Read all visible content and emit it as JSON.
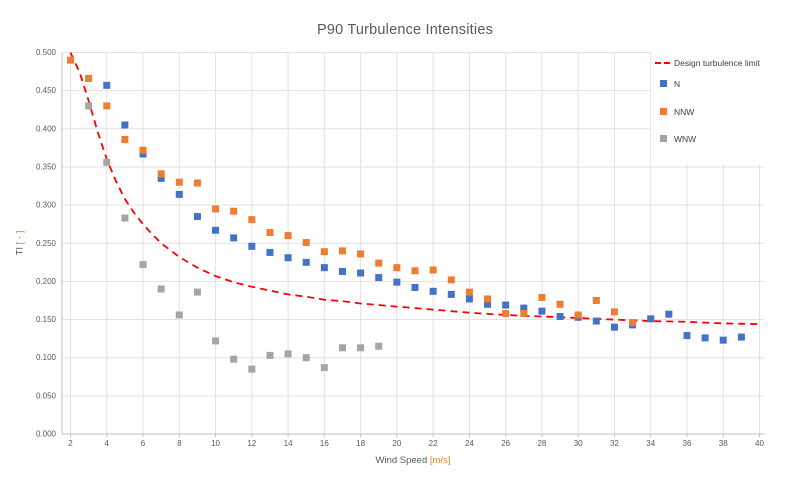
{
  "title": "P90 Turbulence Intensities",
  "x_axis": {
    "label": "Wind Speed",
    "unit": "[m/s]",
    "ticks": [
      2,
      4,
      6,
      8,
      10,
      12,
      14,
      16,
      18,
      20,
      22,
      24,
      26,
      28,
      30,
      32,
      34,
      36,
      38,
      40
    ]
  },
  "y_axis": {
    "label": "TI",
    "unit": "[ - ]",
    "ticks": [
      "0.000",
      "0.050",
      "0.100",
      "0.150",
      "0.200",
      "0.250",
      "0.300",
      "0.350",
      "0.400",
      "0.450",
      "0.500"
    ]
  },
  "legend": {
    "limit_label": "Design turbulence limit",
    "series_labels": {
      "n": "N",
      "nnw": "NNW",
      "wnw": "WNW"
    }
  },
  "colors": {
    "n": "#4472C4",
    "nnw": "#ED7D31",
    "wnw": "#A5A5A5",
    "limit": "#FF0000",
    "grid": "#E2E2E2",
    "axis": "#BFBFBF",
    "text": "#595959",
    "accent": "#ED7D31"
  },
  "chart_data": {
    "type": "scatter",
    "title": "P90 Turbulence Intensities",
    "xlabel": "Wind Speed [m/s]",
    "ylabel": "TI [ - ]",
    "xlim": [
      2,
      40
    ],
    "ylim": [
      0,
      0.5
    ],
    "x_tick_step": 2,
    "y_tick_step": 0.05,
    "grid": true,
    "legend_position": "top-right",
    "series": [
      {
        "name": "N",
        "marker": "square",
        "color": "#4472C4",
        "points": [
          [
            4,
            0.457
          ],
          [
            5,
            0.405
          ],
          [
            6,
            0.367
          ],
          [
            7,
            0.335
          ],
          [
            8,
            0.314
          ],
          [
            9,
            0.285
          ],
          [
            10,
            0.267
          ],
          [
            11,
            0.257
          ],
          [
            12,
            0.246
          ],
          [
            13,
            0.238
          ],
          [
            14,
            0.231
          ],
          [
            15,
            0.225
          ],
          [
            16,
            0.218
          ],
          [
            17,
            0.213
          ],
          [
            18,
            0.211
          ],
          [
            19,
            0.205
          ],
          [
            20,
            0.199
          ],
          [
            21,
            0.192
          ],
          [
            22,
            0.187
          ],
          [
            23,
            0.183
          ],
          [
            24,
            0.177
          ],
          [
            25,
            0.17
          ],
          [
            26,
            0.169
          ],
          [
            27,
            0.165
          ],
          [
            28,
            0.161
          ],
          [
            29,
            0.154
          ],
          [
            30,
            0.153
          ],
          [
            31,
            0.148
          ],
          [
            32,
            0.14
          ],
          [
            33,
            0.143
          ],
          [
            34,
            0.151
          ],
          [
            35,
            0.157
          ],
          [
            36,
            0.129
          ],
          [
            37,
            0.126
          ],
          [
            38,
            0.123
          ],
          [
            39,
            0.127
          ]
        ]
      },
      {
        "name": "NNW",
        "marker": "square",
        "color": "#ED7D31",
        "points": [
          [
            2,
            0.49
          ],
          [
            3,
            0.466
          ],
          [
            4,
            0.43
          ],
          [
            5,
            0.386
          ],
          [
            6,
            0.372
          ],
          [
            7,
            0.341
          ],
          [
            8,
            0.33
          ],
          [
            9,
            0.329
          ],
          [
            10,
            0.295
          ],
          [
            11,
            0.292
          ],
          [
            12,
            0.281
          ],
          [
            13,
            0.264
          ],
          [
            14,
            0.26
          ],
          [
            15,
            0.251
          ],
          [
            16,
            0.239
          ],
          [
            17,
            0.24
          ],
          [
            18,
            0.236
          ],
          [
            19,
            0.224
          ],
          [
            20,
            0.218
          ],
          [
            21,
            0.214
          ],
          [
            22,
            0.215
          ],
          [
            23,
            0.202
          ],
          [
            24,
            0.186
          ],
          [
            25,
            0.177
          ],
          [
            26,
            0.158
          ],
          [
            27,
            0.158
          ],
          [
            28,
            0.179
          ],
          [
            29,
            0.17
          ],
          [
            30,
            0.156
          ],
          [
            31,
            0.175
          ],
          [
            32,
            0.16
          ],
          [
            33,
            0.146
          ]
        ]
      },
      {
        "name": "WNW",
        "marker": "square",
        "color": "#A5A5A5",
        "points": [
          [
            3,
            0.43
          ],
          [
            4,
            0.356
          ],
          [
            5,
            0.283
          ],
          [
            6,
            0.222
          ],
          [
            7,
            0.19
          ],
          [
            8,
            0.156
          ],
          [
            9,
            0.186
          ],
          [
            10,
            0.122
          ],
          [
            11,
            0.098
          ],
          [
            12,
            0.085
          ],
          [
            13,
            0.103
          ],
          [
            14,
            0.105
          ],
          [
            15,
            0.1
          ],
          [
            16,
            0.087
          ],
          [
            17,
            0.113
          ],
          [
            18,
            0.113
          ],
          [
            19,
            0.115
          ]
        ]
      }
    ],
    "limit_line": {
      "name": "Design turbulence limit",
      "style": "dashed",
      "color": "#FF0000",
      "points": [
        [
          2,
          0.5
        ],
        [
          2.5,
          0.474
        ],
        [
          3,
          0.437
        ],
        [
          3.5,
          0.396
        ],
        [
          4,
          0.36
        ],
        [
          4.5,
          0.332
        ],
        [
          5,
          0.308
        ],
        [
          5.5,
          0.29
        ],
        [
          6,
          0.275
        ],
        [
          6.5,
          0.262
        ],
        [
          7,
          0.25
        ],
        [
          7.5,
          0.241
        ],
        [
          8,
          0.232
        ],
        [
          9,
          0.218
        ],
        [
          10,
          0.207
        ],
        [
          11,
          0.199
        ],
        [
          12,
          0.193
        ],
        [
          13,
          0.188
        ],
        [
          14,
          0.183
        ],
        [
          15,
          0.18
        ],
        [
          16,
          0.176
        ],
        [
          17,
          0.174
        ],
        [
          18,
          0.171
        ],
        [
          20,
          0.167
        ],
        [
          22,
          0.163
        ],
        [
          24,
          0.159
        ],
        [
          26,
          0.156
        ],
        [
          28,
          0.154
        ],
        [
          30,
          0.152
        ],
        [
          32,
          0.15
        ],
        [
          34,
          0.148
        ],
        [
          36,
          0.147
        ],
        [
          38,
          0.145
        ],
        [
          40,
          0.144
        ]
      ]
    }
  }
}
